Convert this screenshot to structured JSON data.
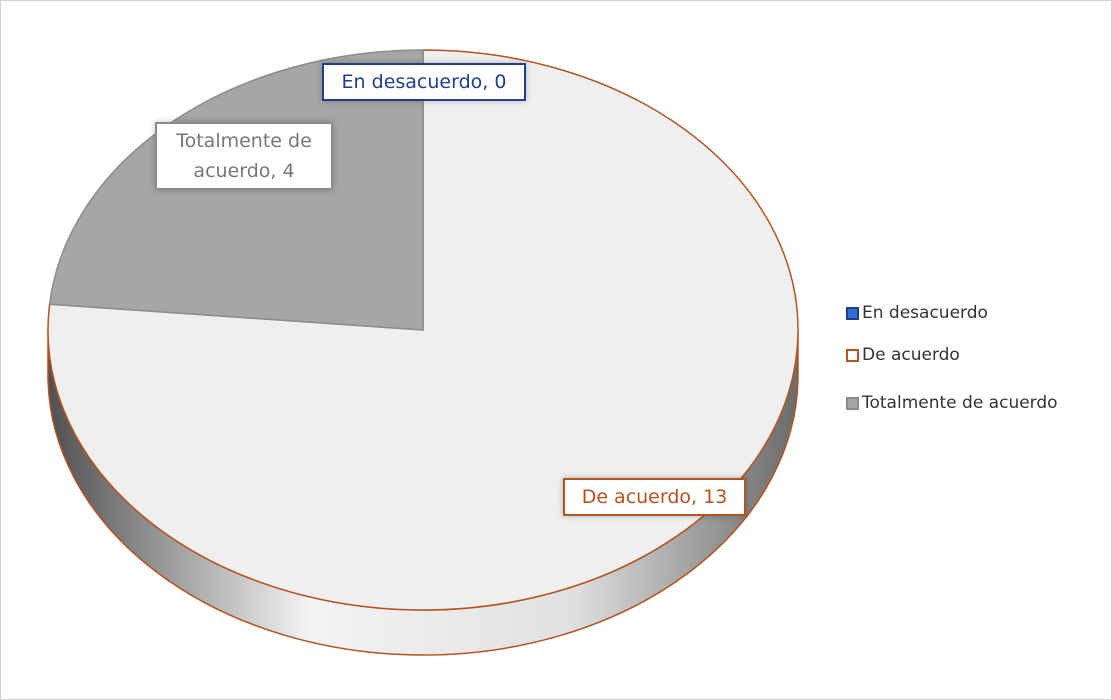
{
  "chart_data": {
    "type": "pie",
    "categories": [
      "En desacuerdo",
      "De acuerdo",
      "Totalmente de acuerdo"
    ],
    "values": [
      0,
      13,
      4
    ],
    "value_labels": [
      "En desacuerdo, 0",
      "De acuerdo, 13",
      "Totalmente de acuerdo, 4"
    ],
    "colors": [
      "#2f6fd6",
      "#efefef",
      "#a6a6a6"
    ],
    "edgecolors": [
      "#1f3f8a",
      "#b5531f",
      "#8c8c8c"
    ],
    "legend": "right"
  }
}
